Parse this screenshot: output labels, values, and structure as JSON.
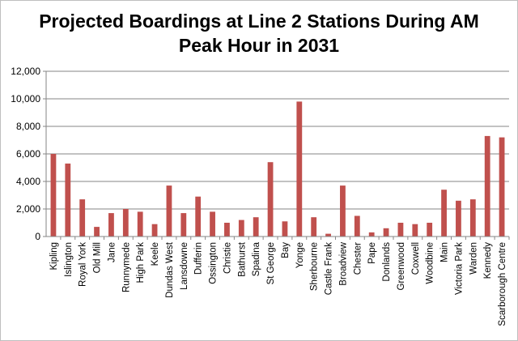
{
  "chart_data": {
    "type": "bar",
    "title_lines": [
      "Projected Boardings at Line 2 Stations During AM",
      "Peak Hour in 2031"
    ],
    "xlabel": "",
    "ylabel": "",
    "ylim": [
      0,
      12000
    ],
    "yticks": [
      0,
      2000,
      4000,
      6000,
      8000,
      10000,
      12000
    ],
    "ytick_labels": [
      "0",
      "2,000",
      "4,000",
      "6,000",
      "8,000",
      "10,000",
      "12,000"
    ],
    "grid": "horizontal",
    "legend": "none",
    "bar_color": "#c0504d",
    "categories": [
      "Kipling",
      "Islington",
      "Royal York",
      "Old Mill",
      "Jane",
      "Runnymede",
      "High Park",
      "Keele",
      "Dundas West",
      "Lansdowne",
      "Dufferin",
      "Ossington",
      "Christie",
      "Bathurst",
      "Spadina",
      "St George",
      "Bay",
      "Yonge",
      "Sherbourne",
      "Castle Frank",
      "Broadview",
      "Chester",
      "Pape",
      "Donlands",
      "Greenwood",
      "Coxwell",
      "Woodbine",
      "Main",
      "Victoria Park",
      "Warden",
      "Kennedy",
      "Scarborough Centre"
    ],
    "values": [
      6000,
      5300,
      2700,
      700,
      1700,
      2000,
      1800,
      900,
      3700,
      1700,
      2900,
      1800,
      1000,
      1200,
      1400,
      5400,
      1100,
      9800,
      1400,
      200,
      3700,
      1500,
      300,
      600,
      1000,
      900,
      1000,
      3400,
      2600,
      2700,
      7300,
      7200
    ]
  }
}
